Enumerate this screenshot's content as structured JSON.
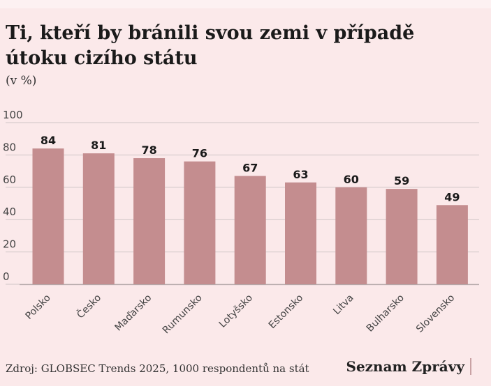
{
  "title": "Ti, kteří by bránili svou zemi v případě útoku cizího státu",
  "unit": "(v %)",
  "source": "Zdroj: GLOBSEC Trends 2025, 1000 respondentů na stát",
  "brand": "Seznam Zprávy",
  "colors": {
    "background": "#fbe9ea",
    "bar": "#c48d8f",
    "grid": "#cfc5c6",
    "text": "#1a1a1a"
  },
  "chart_data": {
    "type": "bar",
    "categories": [
      "Polsko",
      "Česko",
      "Maďarsko",
      "Rumunsko",
      "Lotyšsko",
      "Estonsko",
      "Litva",
      "Bulharsko",
      "Slovensko"
    ],
    "values": [
      84,
      81,
      78,
      76,
      67,
      63,
      60,
      59,
      49
    ],
    "yticks": [
      0,
      20,
      40,
      60,
      80,
      100
    ],
    "ylim": [
      0,
      100
    ],
    "grid": true,
    "data_labels": true
  }
}
